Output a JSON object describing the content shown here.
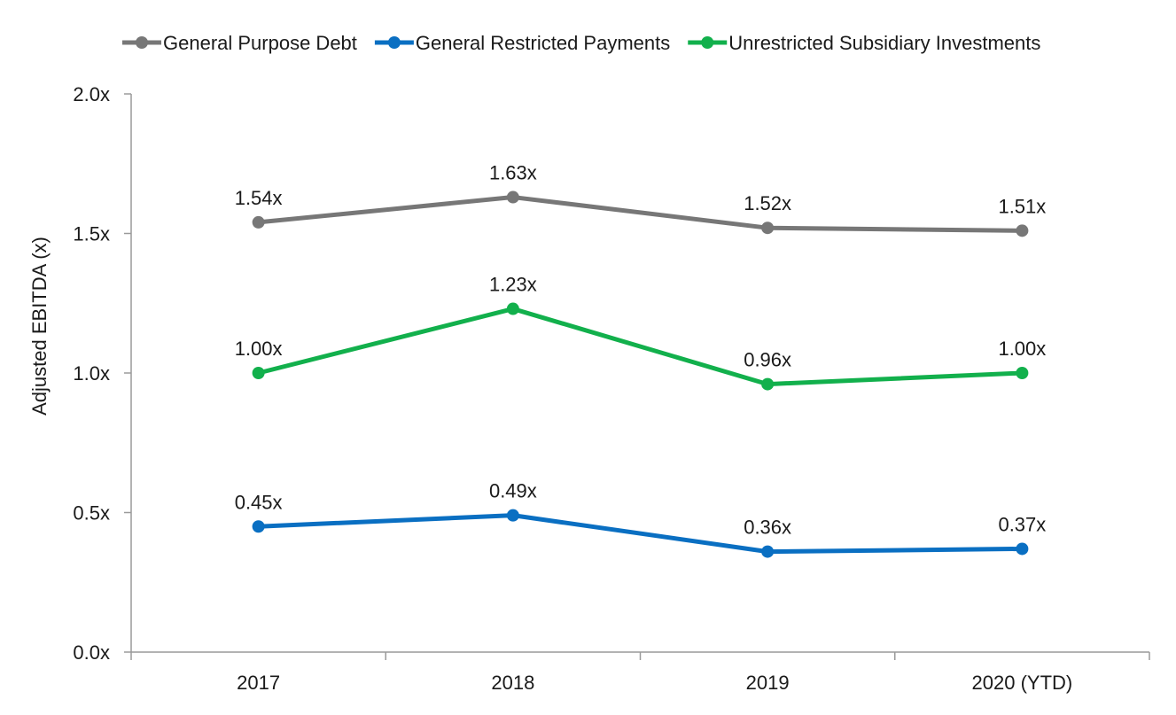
{
  "chart_data": {
    "type": "line",
    "title": "",
    "xlabel": "",
    "ylabel": "Adjusted EBITDA (x)",
    "categories": [
      "2017",
      "2018",
      "2019",
      "2020 (YTD)"
    ],
    "ylim": [
      0,
      2.0
    ],
    "yticks": [
      {
        "value": 0.0,
        "label": "0.0x"
      },
      {
        "value": 0.5,
        "label": "0.5x"
      },
      {
        "value": 1.0,
        "label": "1.0x"
      },
      {
        "value": 1.5,
        "label": "1.5x"
      },
      {
        "value": 2.0,
        "label": "2.0x"
      }
    ],
    "grid": false,
    "legend_position": "top",
    "series": [
      {
        "name": "General Purpose Debt",
        "color": "#777777",
        "values": [
          1.54,
          1.63,
          1.52,
          1.51
        ],
        "labels": [
          "1.54x",
          "1.63x",
          "1.52x",
          "1.51x"
        ]
      },
      {
        "name": "General Restricted Payments",
        "color": "#0a6fc2",
        "values": [
          0.45,
          0.49,
          0.36,
          0.37
        ],
        "labels": [
          "0.45x",
          "0.49x",
          "0.36x",
          "0.37x"
        ]
      },
      {
        "name": "Unrestricted Subsidiary Investments",
        "color": "#12b04c",
        "values": [
          1.0,
          1.23,
          0.96,
          1.0
        ],
        "labels": [
          "1.00x",
          "1.23x",
          "0.96x",
          "1.00x"
        ]
      }
    ]
  }
}
